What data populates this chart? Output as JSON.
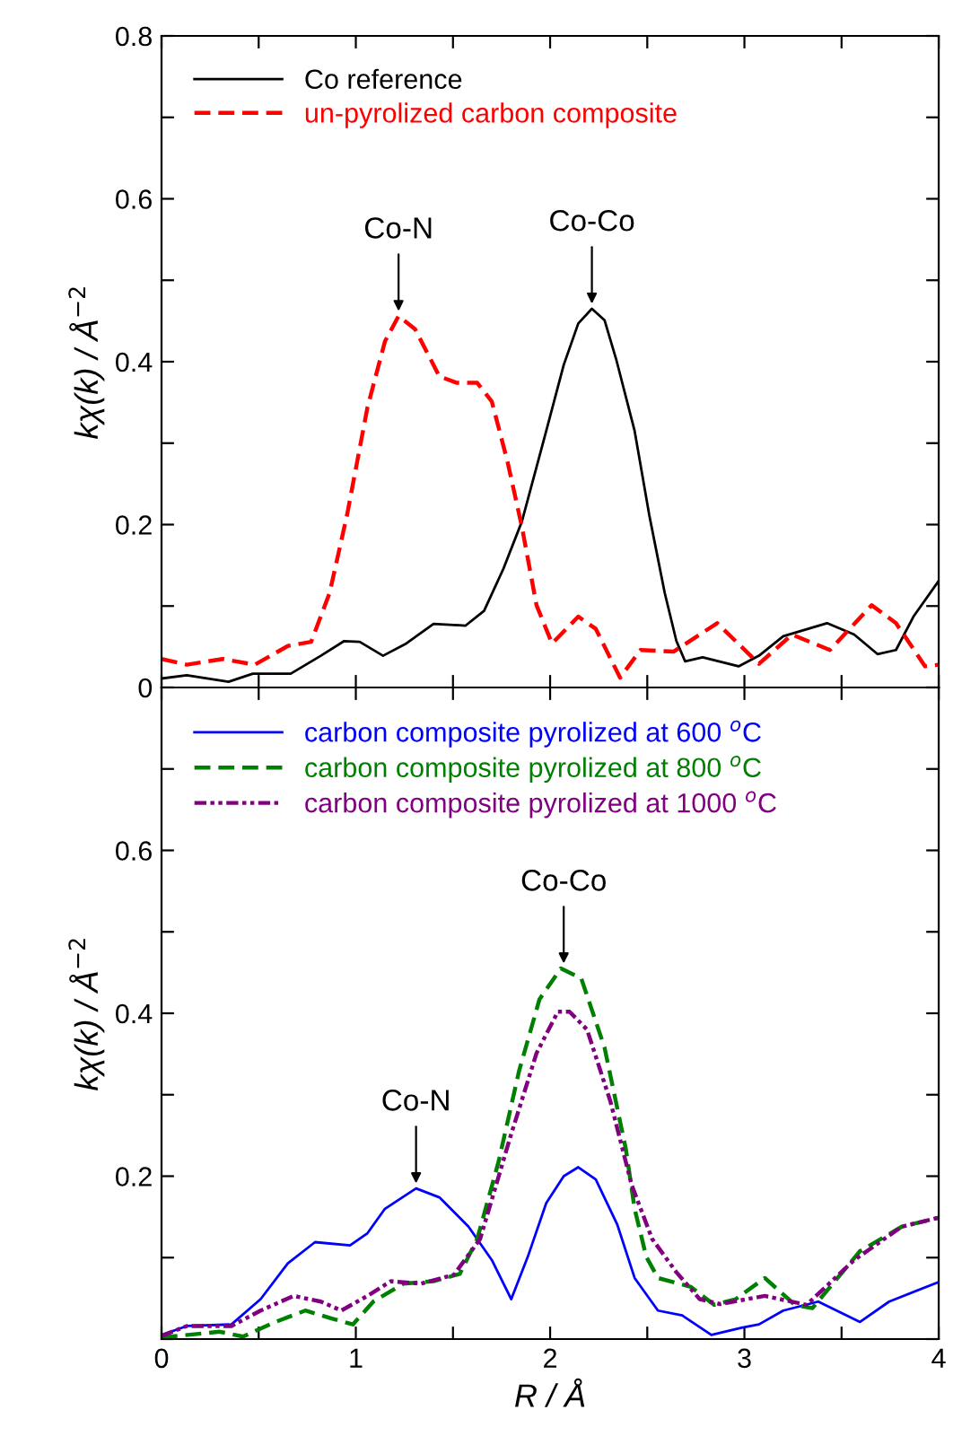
{
  "chart_data": [
    {
      "type": "line",
      "ylabel": "kχ(k) / Å$^{−2}$",
      "xlim": [
        0,
        4
      ],
      "ylim": [
        0,
        0.8
      ],
      "xticks": [
        {
          "value": 0,
          "label": null
        },
        {
          "value": 0.5,
          "label": null
        },
        {
          "value": 1,
          "label": null
        },
        {
          "value": 1.5,
          "label": null
        },
        {
          "value": 2,
          "label": null
        },
        {
          "value": 2.5,
          "label": null
        },
        {
          "value": 3,
          "label": null
        },
        {
          "value": 3.5,
          "label": null
        },
        {
          "value": 4,
          "label": null
        }
      ],
      "yticks": [
        0,
        {
          "value": 0.1,
          "label": null
        },
        0.2,
        {
          "value": 0.3,
          "label": null
        },
        0.4,
        {
          "value": 0.5,
          "label": null
        },
        0.6,
        {
          "value": 0.7,
          "label": null
        },
        0.8
      ],
      "tick_labels": "y",
      "legend": "top left",
      "grid": false,
      "annotations": [
        {
          "text": "Co-N",
          "x": 1.22,
          "y": 0.456
        },
        {
          "text": "Co-Co",
          "x": 2.215,
          "y": 0.465
        }
      ],
      "series": [
        {
          "name": "Co reference",
          "color": "#000000",
          "line_style": "solid",
          "x": [
            0,
            0.13,
            0.345,
            0.47,
            0.665,
            0.82,
            0.94,
            1.02,
            1.14,
            1.26,
            1.4,
            1.565,
            1.66,
            1.76,
            1.855,
            1.98,
            2.07,
            2.145,
            2.215,
            2.28,
            2.34,
            2.435,
            2.51,
            2.59,
            2.65,
            2.695,
            2.785,
            2.97,
            3.075,
            3.2,
            3.425,
            3.565,
            3.685,
            3.78,
            3.87,
            4.0
          ],
          "values": [
            0.011,
            0.015,
            0.007,
            0.017,
            0.017,
            0.039,
            0.057,
            0.056,
            0.039,
            0.054,
            0.078,
            0.076,
            0.094,
            0.146,
            0.204,
            0.315,
            0.396,
            0.447,
            0.465,
            0.451,
            0.403,
            0.315,
            0.212,
            0.116,
            0.057,
            0.032,
            0.037,
            0.026,
            0.039,
            0.063,
            0.079,
            0.065,
            0.041,
            0.046,
            0.087,
            0.131
          ]
        },
        {
          "name": "un-pyrolized carbon composite",
          "color": "#ff0000",
          "line_style": "dashed",
          "x": [
            0,
            0.13,
            0.315,
            0.48,
            0.65,
            0.77,
            0.865,
            0.955,
            1.06,
            1.15,
            1.22,
            1.305,
            1.43,
            1.52,
            1.625,
            1.7,
            1.78,
            1.855,
            1.93,
            2.01,
            2.145,
            2.235,
            2.36,
            2.465,
            2.635,
            2.86,
            3.075,
            3.245,
            3.44,
            3.655,
            3.78,
            3.93,
            4.0
          ],
          "values": [
            0.035,
            0.028,
            0.035,
            0.028,
            0.051,
            0.056,
            0.116,
            0.212,
            0.344,
            0.425,
            0.456,
            0.44,
            0.382,
            0.374,
            0.374,
            0.351,
            0.278,
            0.197,
            0.101,
            0.054,
            0.087,
            0.072,
            0.012,
            0.046,
            0.044,
            0.079,
            0.029,
            0.065,
            0.046,
            0.101,
            0.079,
            0.026,
            0.028
          ]
        }
      ]
    },
    {
      "type": "line",
      "ylabel": "kχ(k) / Å$^{−2}$",
      "xlabel": "R / Å",
      "xlim": [
        0,
        4
      ],
      "ylim": [
        0,
        0.8
      ],
      "xticks": [
        0,
        {
          "value": 0.5,
          "label": null
        },
        1,
        {
          "value": 1.5,
          "label": null
        },
        2,
        {
          "value": 2.5,
          "label": null
        },
        3,
        {
          "value": 3.5,
          "label": null
        },
        4
      ],
      "yticks": [
        {
          "value": 0,
          "label": null
        },
        {
          "value": 0.1,
          "label": null
        },
        0.2,
        {
          "value": 0.3,
          "label": null
        },
        0.4,
        {
          "value": 0.5,
          "label": null
        },
        0.6,
        {
          "value": 0.7,
          "label": null
        },
        {
          "value": 0.8,
          "label": null
        }
      ],
      "legend": "top left",
      "grid": false,
      "annotations": [
        {
          "text": "Co-N",
          "x": 1.31,
          "y": 0.185
        },
        {
          "text": "Co-Co",
          "x": 2.07,
          "y": 0.455
        }
      ],
      "series": [
        {
          "name": "carbon composite pyrolized at 600 $^{o}$C",
          "color": "#0000ff",
          "line_style": "solid",
          "x": [
            0,
            0.13,
            0.36,
            0.51,
            0.65,
            0.79,
            0.97,
            1.06,
            1.15,
            1.31,
            1.43,
            1.58,
            1.7,
            1.8,
            1.885,
            1.98,
            2.07,
            2.145,
            2.235,
            2.345,
            2.435,
            2.555,
            2.68,
            2.83,
            2.985,
            3.075,
            3.2,
            3.38,
            3.595,
            3.745,
            4.0
          ],
          "values": [
            0.005,
            0.016,
            0.018,
            0.049,
            0.093,
            0.119,
            0.115,
            0.13,
            0.16,
            0.185,
            0.174,
            0.138,
            0.097,
            0.049,
            0.101,
            0.167,
            0.2,
            0.211,
            0.196,
            0.141,
            0.075,
            0.035,
            0.029,
            0.005,
            0.014,
            0.018,
            0.035,
            0.046,
            0.021,
            0.046,
            0.07
          ]
        },
        {
          "name": "carbon composite pyrolized at 800 $^{o}$C",
          "color": "#008000",
          "line_style": "dashed",
          "x": [
            0,
            0.3,
            0.42,
            0.575,
            0.74,
            0.88,
            0.985,
            1.09,
            1.245,
            1.4,
            1.535,
            1.625,
            1.735,
            1.84,
            1.945,
            2.055,
            2.16,
            2.28,
            2.39,
            2.435,
            2.495,
            2.555,
            2.725,
            2.845,
            2.955,
            3.105,
            3.26,
            3.35,
            3.595,
            3.81,
            4.0
          ],
          "values": [
            0.002,
            0.009,
            0.003,
            0.02,
            0.035,
            0.025,
            0.018,
            0.046,
            0.068,
            0.071,
            0.08,
            0.123,
            0.218,
            0.329,
            0.417,
            0.455,
            0.443,
            0.358,
            0.233,
            0.16,
            0.101,
            0.075,
            0.064,
            0.042,
            0.049,
            0.075,
            0.042,
            0.038,
            0.108,
            0.138,
            0.149
          ]
        },
        {
          "name": "carbon composite pyrolized at 1000 $^{o}$C",
          "color": "#800080",
          "line_style": "dotted",
          "x": [
            0,
            0.13,
            0.36,
            0.51,
            0.68,
            0.82,
            0.925,
            1.06,
            1.18,
            1.335,
            1.505,
            1.64,
            1.795,
            1.93,
            2.04,
            2.1,
            2.19,
            2.31,
            2.42,
            2.525,
            2.65,
            2.77,
            2.875,
            3.105,
            3.32,
            3.565,
            3.81,
            4.0
          ],
          "values": [
            0.004,
            0.016,
            0.016,
            0.035,
            0.053,
            0.046,
            0.035,
            0.053,
            0.071,
            0.068,
            0.079,
            0.123,
            0.248,
            0.351,
            0.402,
            0.402,
            0.38,
            0.292,
            0.189,
            0.123,
            0.082,
            0.049,
            0.043,
            0.053,
            0.042,
            0.097,
            0.138,
            0.149
          ]
        }
      ]
    }
  ]
}
